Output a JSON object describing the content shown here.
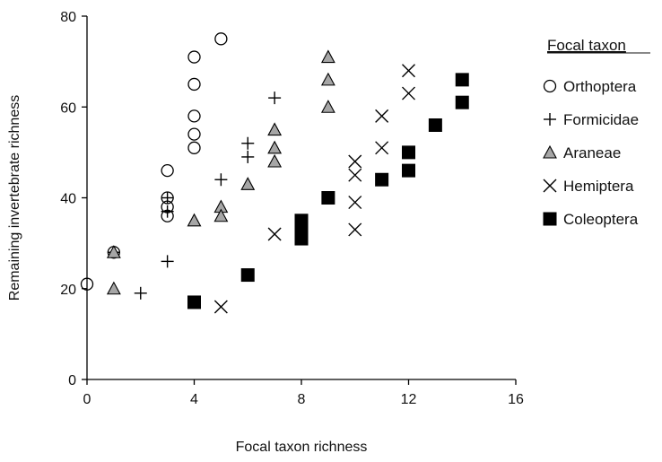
{
  "chart_data": {
    "type": "scatter",
    "title": "",
    "xlabel": "Focal taxon richness",
    "ylabel": "Remaining invertebrate richness",
    "xlim": [
      0,
      16
    ],
    "ylim": [
      0,
      80
    ],
    "xticks": [
      "0",
      "4",
      "8",
      "12",
      "16"
    ],
    "yticks": [
      "0",
      "20",
      "40",
      "60",
      "80"
    ],
    "grid": false,
    "legend_title": "Focal taxon",
    "legend_placement": "right",
    "series": [
      {
        "name": "Orthoptera",
        "marker": "open-circle",
        "points": [
          [
            0,
            21
          ],
          [
            1,
            28
          ],
          [
            3,
            46
          ],
          [
            3,
            40
          ],
          [
            3,
            38
          ],
          [
            3,
            36
          ],
          [
            4,
            71
          ],
          [
            4,
            65
          ],
          [
            4,
            58
          ],
          [
            4,
            54
          ],
          [
            4,
            51
          ],
          [
            5,
            75
          ]
        ]
      },
      {
        "name": "Formicidae",
        "marker": "plus",
        "points": [
          [
            1,
            28
          ],
          [
            2,
            19
          ],
          [
            3,
            26
          ],
          [
            3,
            40
          ],
          [
            3,
            37
          ],
          [
            5,
            44
          ],
          [
            6,
            52
          ],
          [
            6,
            49
          ],
          [
            7,
            62
          ]
        ]
      },
      {
        "name": "Araneae",
        "marker": "gray-triangle",
        "points": [
          [
            1,
            28
          ],
          [
            1,
            20
          ],
          [
            4,
            35
          ],
          [
            5,
            38
          ],
          [
            5,
            36
          ],
          [
            6,
            43
          ],
          [
            7,
            55
          ],
          [
            7,
            51
          ],
          [
            7,
            48
          ],
          [
            9,
            71
          ],
          [
            9,
            66
          ],
          [
            9,
            60
          ]
        ]
      },
      {
        "name": "Hemiptera",
        "marker": "x",
        "points": [
          [
            5,
            16
          ],
          [
            7,
            32
          ],
          [
            10,
            48
          ],
          [
            10,
            45
          ],
          [
            10,
            39
          ],
          [
            10,
            33
          ],
          [
            11,
            58
          ],
          [
            11,
            51
          ],
          [
            12,
            68
          ],
          [
            12,
            63
          ]
        ]
      },
      {
        "name": "Coleoptera",
        "marker": "filled-square",
        "points": [
          [
            4,
            17
          ],
          [
            6,
            23
          ],
          [
            8,
            35
          ],
          [
            8,
            33
          ],
          [
            8,
            31
          ],
          [
            9,
            40
          ],
          [
            11,
            44
          ],
          [
            12,
            50
          ],
          [
            12,
            46
          ],
          [
            13,
            56
          ],
          [
            14,
            66
          ],
          [
            14,
            61
          ]
        ]
      }
    ]
  },
  "colors": {
    "axis": "#000000",
    "marker_stroke": "#000000",
    "triangle_fill": "#a6a6a6",
    "square_fill": "#000000"
  }
}
